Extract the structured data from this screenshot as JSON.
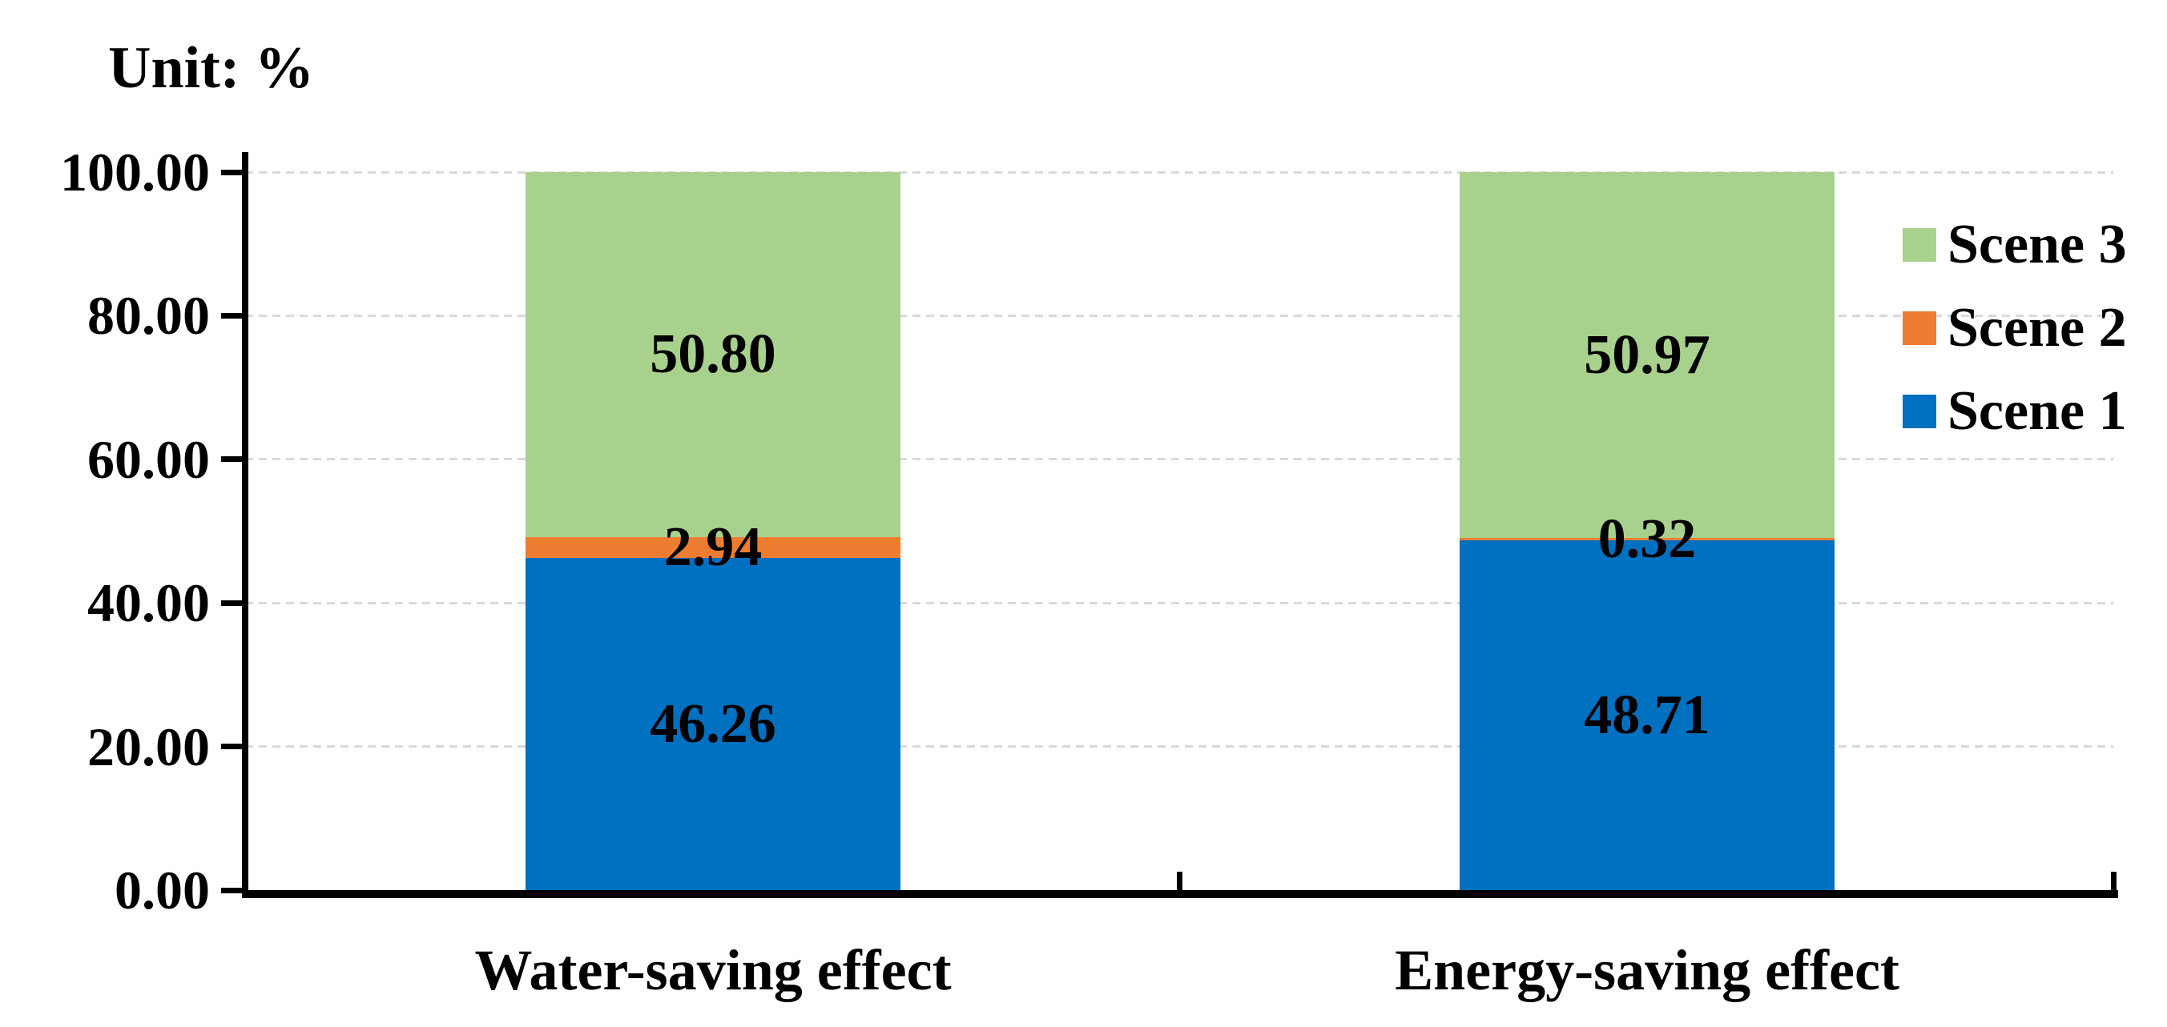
{
  "chart_data": {
    "type": "bar",
    "stacked": true,
    "unit_label": "Unit: %",
    "title": "",
    "xlabel": "",
    "ylabel": "Unit: %",
    "categories": [
      "Water-saving effect",
      "Energy-saving effect"
    ],
    "series": [
      {
        "name": "Scene 1",
        "color": "#0070C0",
        "values": [
          46.26,
          48.71
        ],
        "labels": [
          "46.26",
          "48.71"
        ]
      },
      {
        "name": "Scene 2",
        "color": "#ED7D31",
        "values": [
          2.94,
          0.32
        ],
        "labels": [
          "2.94",
          "0.32"
        ]
      },
      {
        "name": "Scene 3",
        "color": "#A9D18E",
        "values": [
          50.8,
          50.97
        ],
        "labels": [
          "50.80",
          "50.97"
        ]
      }
    ],
    "totals": [
      100.0,
      100.0
    ],
    "ylim": [
      0,
      100
    ],
    "y_tick_step": 20,
    "y_tick_labels": [
      "0.00",
      "20.00",
      "40.00",
      "60.00",
      "80.00",
      "100.00"
    ],
    "grid": "horizontal-dashed",
    "gridline_color": "#D9D9D9",
    "axis_color": "#000000",
    "legend_position": "right",
    "legend_items": [
      {
        "label": "Scene 3",
        "color": "#A9D18E"
      },
      {
        "label": "Scene 2",
        "color": "#ED7D31"
      },
      {
        "label": "Scene 1",
        "color": "#0070C0"
      }
    ]
  }
}
